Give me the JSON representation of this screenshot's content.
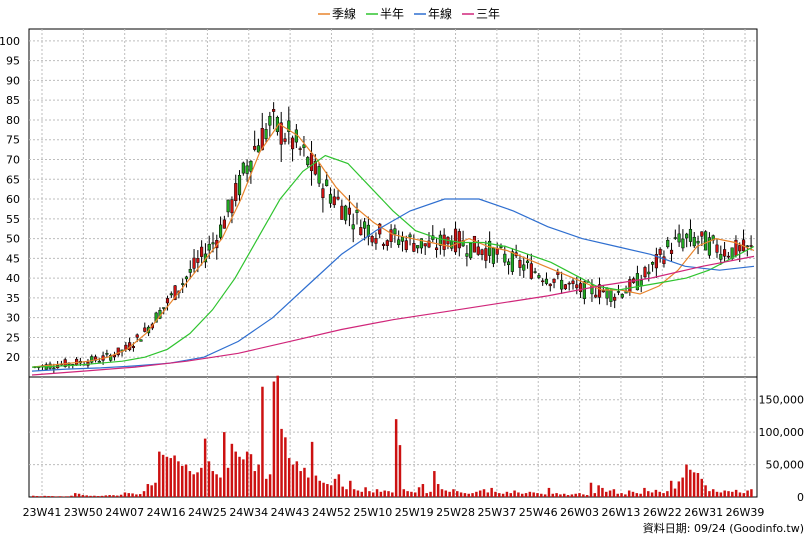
{
  "chart_data": [
    {
      "type": "candlestick",
      "legend": [
        {
          "name": "季線",
          "color": "#e8842c"
        },
        {
          "name": "半年",
          "color": "#2fc42f"
        },
        {
          "name": "年線",
          "color": "#2f6fd0"
        },
        {
          "name": "三年",
          "color": "#d0267a"
        }
      ],
      "ylim": [
        15,
        103
      ],
      "y_ticks": [
        20,
        25,
        30,
        35,
        40,
        45,
        50,
        55,
        60,
        65,
        70,
        75,
        80,
        85,
        90,
        95,
        100
      ],
      "x_ticks": [
        "23W41",
        "23W50",
        "24W07",
        "24W16",
        "24W25",
        "24W34",
        "24W43",
        "24W52",
        "25W10",
        "25W19",
        "25W28",
        "25W37",
        "25W46",
        "26W03",
        "26W13",
        "26W22",
        "26W31",
        "26W39"
      ],
      "up_color": "#cc1111",
      "down_color": "#22aa22",
      "grid": true,
      "legend_position": "top-center",
      "series": [
        {
          "name": "季線",
          "color": "#e8842c",
          "values": [
            17.5,
            18,
            18.5,
            19,
            20,
            22,
            26,
            32,
            38,
            44,
            50,
            60,
            72,
            79,
            76,
            70,
            63,
            58,
            54,
            51,
            50,
            49,
            48,
            50,
            48,
            47,
            45,
            43,
            41,
            39,
            37,
            37,
            36,
            38,
            42,
            48,
            50,
            49,
            47
          ]
        },
        {
          "name": "半年",
          "color": "#2fc42f",
          "values": [
            17.5,
            17.7,
            18,
            18.5,
            19,
            20,
            22,
            26,
            32,
            40,
            50,
            60,
            67,
            71,
            69,
            63,
            57,
            52,
            50,
            49,
            49,
            48,
            46,
            44,
            41,
            38,
            37,
            38,
            39,
            40,
            42,
            45,
            48
          ]
        },
        {
          "name": "年線",
          "color": "#2f6fd0",
          "values": [
            16.5,
            17,
            17.3,
            17.8,
            18.5,
            20,
            24,
            30,
            38,
            46,
            52,
            57,
            60,
            60,
            57,
            53,
            50,
            48,
            46,
            43,
            42,
            43
          ]
        },
        {
          "name": "三年",
          "color": "#d0267a",
          "values": [
            15.5,
            16.5,
            17.5,
            19,
            21,
            24,
            27,
            29.5,
            31.5,
            33.5,
            35.5,
            38,
            40,
            43,
            45.5
          ]
        }
      ]
    },
    {
      "type": "bar",
      "ylim": [
        0,
        185000
      ],
      "y_ticks": [
        {
          "value": 0,
          "label": "0"
        },
        {
          "value": 50000,
          "label": "50,000"
        },
        {
          "value": 100000,
          "label": "100,000"
        },
        {
          "value": 150000,
          "label": "150,000"
        }
      ],
      "color": "#cc1111",
      "values": [
        2000,
        1500,
        1200,
        1800,
        1500,
        1400,
        1000,
        1200,
        900,
        1100,
        2000,
        6000,
        5000,
        3000,
        2500,
        1800,
        2000,
        1500,
        1800,
        2500,
        3000,
        2800,
        2200,
        3500,
        7000,
        6000,
        5500,
        4000,
        4500,
        9000,
        20000,
        18000,
        22000,
        70000,
        65000,
        62000,
        60000,
        64000,
        55000,
        48000,
        50000,
        40000,
        35000,
        38000,
        45000,
        90000,
        55000,
        40000,
        35000,
        30000,
        100000,
        45000,
        82000,
        70000,
        62000,
        58000,
        70000,
        66000,
        40000,
        50000,
        170000,
        28000,
        35000,
        178000,
        187000,
        105000,
        92000,
        60000,
        50000,
        55000,
        40000,
        45000,
        30000,
        85000,
        33000,
        25000,
        22000,
        20000,
        18000,
        28000,
        35000,
        16000,
        12000,
        25000,
        12000,
        10000,
        8000,
        15000,
        9000,
        7000,
        12000,
        8000,
        10000,
        9000,
        7000,
        120000,
        80000,
        12000,
        9000,
        8000,
        7000,
        15000,
        20000,
        6000,
        8000,
        40000,
        20000,
        12000,
        10000,
        8000,
        12000,
        9000,
        7000,
        6000,
        5000,
        6000,
        8000,
        10000,
        12000,
        7000,
        14000,
        8000,
        6000,
        5000,
        8000,
        6000,
        10000,
        7000,
        5000,
        6000,
        8000,
        7000,
        6000,
        5000,
        4000,
        14000,
        5000,
        6000,
        4000,
        5000,
        3000,
        4000,
        5000,
        6000,
        4000,
        3000,
        22000,
        6000,
        18000,
        14000,
        8000,
        10000,
        12000,
        5000,
        6000,
        4000,
        10000,
        8000,
        6000,
        5000,
        14000,
        9000,
        7000,
        11000,
        8000,
        6000,
        9000,
        25000,
        13000,
        24000,
        30000,
        50000,
        42000,
        38000,
        37000,
        28000,
        18000,
        9000,
        12000,
        8000,
        7000,
        10000,
        9000,
        8000,
        11000,
        7000,
        6000,
        10000,
        12000
      ]
    }
  ],
  "footer": {
    "text": "資料日期: 09/24 (Goodinfo.tw)"
  }
}
